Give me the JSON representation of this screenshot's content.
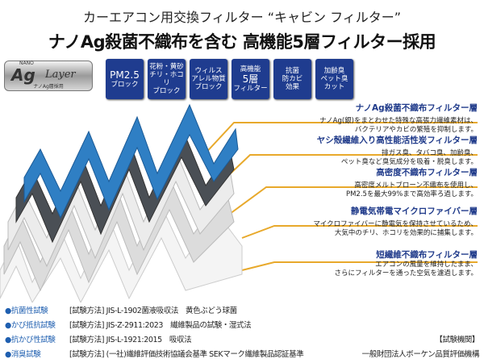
{
  "title": {
    "line1": "カーエアコン用交換フィルター “キャビン フィルター”",
    "line2": "ナノAg殺菌不織布を含む 高機能5層フィルター採用"
  },
  "logo": {
    "nano": "NANO",
    "ag": "Ag",
    "layer": "Layer",
    "sub": "ナノAg層採用"
  },
  "badges": [
    {
      "l1": "PM2.5",
      "l2": "ブロック",
      "l3": ""
    },
    {
      "l1": "花粉・黄砂",
      "l2": "チリ・ホコリ",
      "l3": "ブロック"
    },
    {
      "l1": "ウィルス",
      "l2": "アレル物質",
      "l3": "ブロック"
    },
    {
      "l1": "高機能",
      "l2": "5層",
      "l3": "フィルター"
    },
    {
      "l1": "抗菌",
      "l2": "防カビ",
      "l3": "効果"
    },
    {
      "l1": "加齢臭",
      "l2": "ペット臭",
      "l3": "カット"
    }
  ],
  "layers": [
    {
      "heading": "ナノAg殺菌不織布フィルター層",
      "d1": "ナノAg(銀)をまとわせた特殊な高張力繊維素材は、",
      "d2": "バクテリアやカビの繁殖を抑制します。"
    },
    {
      "heading": "ヤシ殻繊維入り高性能活性炭フィルター層",
      "d1": "排ガス臭、タバコ臭、加齢臭、",
      "d2": "ペット臭など臭気成分を吸着・脱臭します。"
    },
    {
      "heading": "高密度不織布フィルター層",
      "d1": "高密度メルトブローン不織布を使用し、",
      "d2": "PM2.5を最大99%まで高効率ろ過します。"
    },
    {
      "heading": "静電気帯電マイクロファイバー層",
      "d1": "マイクロファイバーに静電気を保持させているため、",
      "d2": "大気中のチリ、ホコリを効果的に捕集します。"
    },
    {
      "heading": "短繊維不織布フィルター層",
      "d1": "エアコンの風量を維持したまま、",
      "d2": "さらにフィルターを通った空気を濾過します。"
    }
  ],
  "tests": [
    {
      "name": "●抗菌性試験",
      "method": "[試験方法] JIS-L-1902菌液吸収法　黄色ぶどう球菌"
    },
    {
      "name": "●かび抵抗試験",
      "method": "[試験方法] JIS-Z-2911:2023　繊維製品の試験・湿式法"
    },
    {
      "name": "●抗かび性試験",
      "method": "[試験方法] JIS-L-1921:2015　吸収法"
    },
    {
      "name": "●消臭試験",
      "method": "[試験方法] (一社)繊維評価技術協議会基準 SEKマーク繊維製品認証基準"
    }
  ],
  "lab": {
    "label": "【試験機関】",
    "name": "一般財団法人ボーケン品質評価機構"
  },
  "colors": {
    "badge": "#1f3c8f",
    "heading": "#1f3a8a",
    "leader": "#e8a92b",
    "filter_top": "#2f7fc4"
  }
}
